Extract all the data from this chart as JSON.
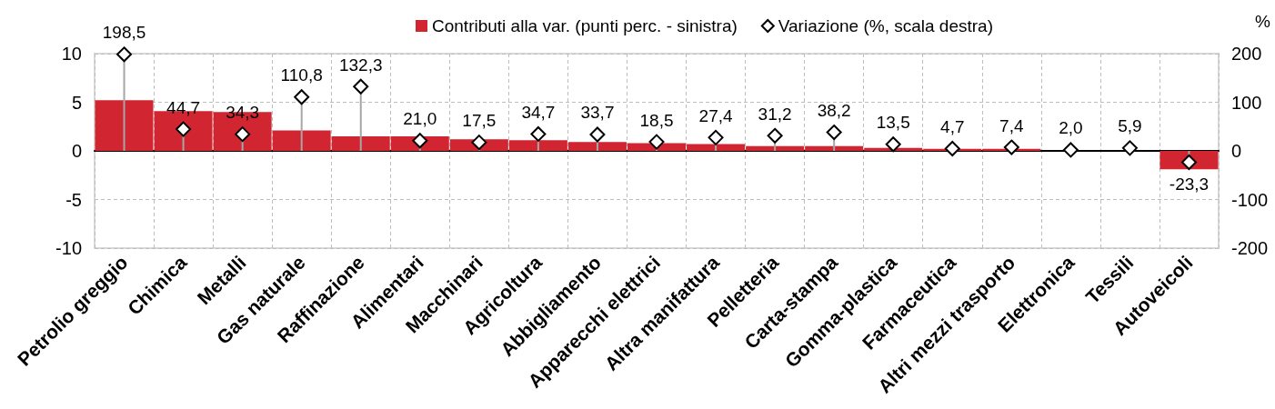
{
  "chart_data": {
    "type": "bar",
    "categories": [
      "Petrolio greggio",
      "Chimica",
      "Metalli",
      "Gas naturale",
      "Raffinazione",
      "Alimentari",
      "Macchinari",
      "Agricoltura",
      "Abbigliamento",
      "Apparecchi elettrici",
      "Altra manifattura",
      "Pelletteria",
      "Carta-stampa",
      "Gomma-plastica",
      "Farmaceutica",
      "Altri mezzi trasporto",
      "Elettronica",
      "Tessili",
      "Autoveicoli"
    ],
    "series": [
      {
        "name": "Contributi alla var. (punti perc. - sinistra)",
        "color": "#d12631",
        "values": [
          5.2,
          4.1,
          4.0,
          2.1,
          1.5,
          1.5,
          1.2,
          1.1,
          0.9,
          0.8,
          0.7,
          0.5,
          0.5,
          0.3,
          0.2,
          0.2,
          0.0,
          0.0,
          -1.9
        ]
      },
      {
        "name": "Variazione (%, scala destra)",
        "type": "lollipop",
        "axis": "y2",
        "marker": "diamond",
        "color": "#000000",
        "values": [
          198.5,
          44.7,
          34.3,
          110.8,
          132.3,
          21.0,
          17.5,
          34.7,
          33.7,
          18.5,
          27.4,
          31.2,
          38.2,
          13.5,
          4.7,
          7.4,
          2.0,
          5.9,
          -23.3
        ],
        "value_labels": [
          "198,5",
          "44,7",
          "34,3",
          "110,8",
          "132,3",
          "21,0",
          "17,5",
          "34,7",
          "33,7",
          "18,5",
          "27,4",
          "31,2",
          "38,2",
          "13,5",
          "4,7",
          "7,4",
          "2,0",
          "5,9",
          "-23,3"
        ]
      }
    ],
    "y2label": "%",
    "ylim": [
      -10,
      10
    ],
    "yticks": [
      -10,
      -5,
      0,
      5,
      10
    ],
    "y2lim": [
      -200,
      200
    ],
    "y2ticks": [
      -200,
      -100,
      0,
      100,
      200
    ],
    "grid": true,
    "legend": "top"
  }
}
